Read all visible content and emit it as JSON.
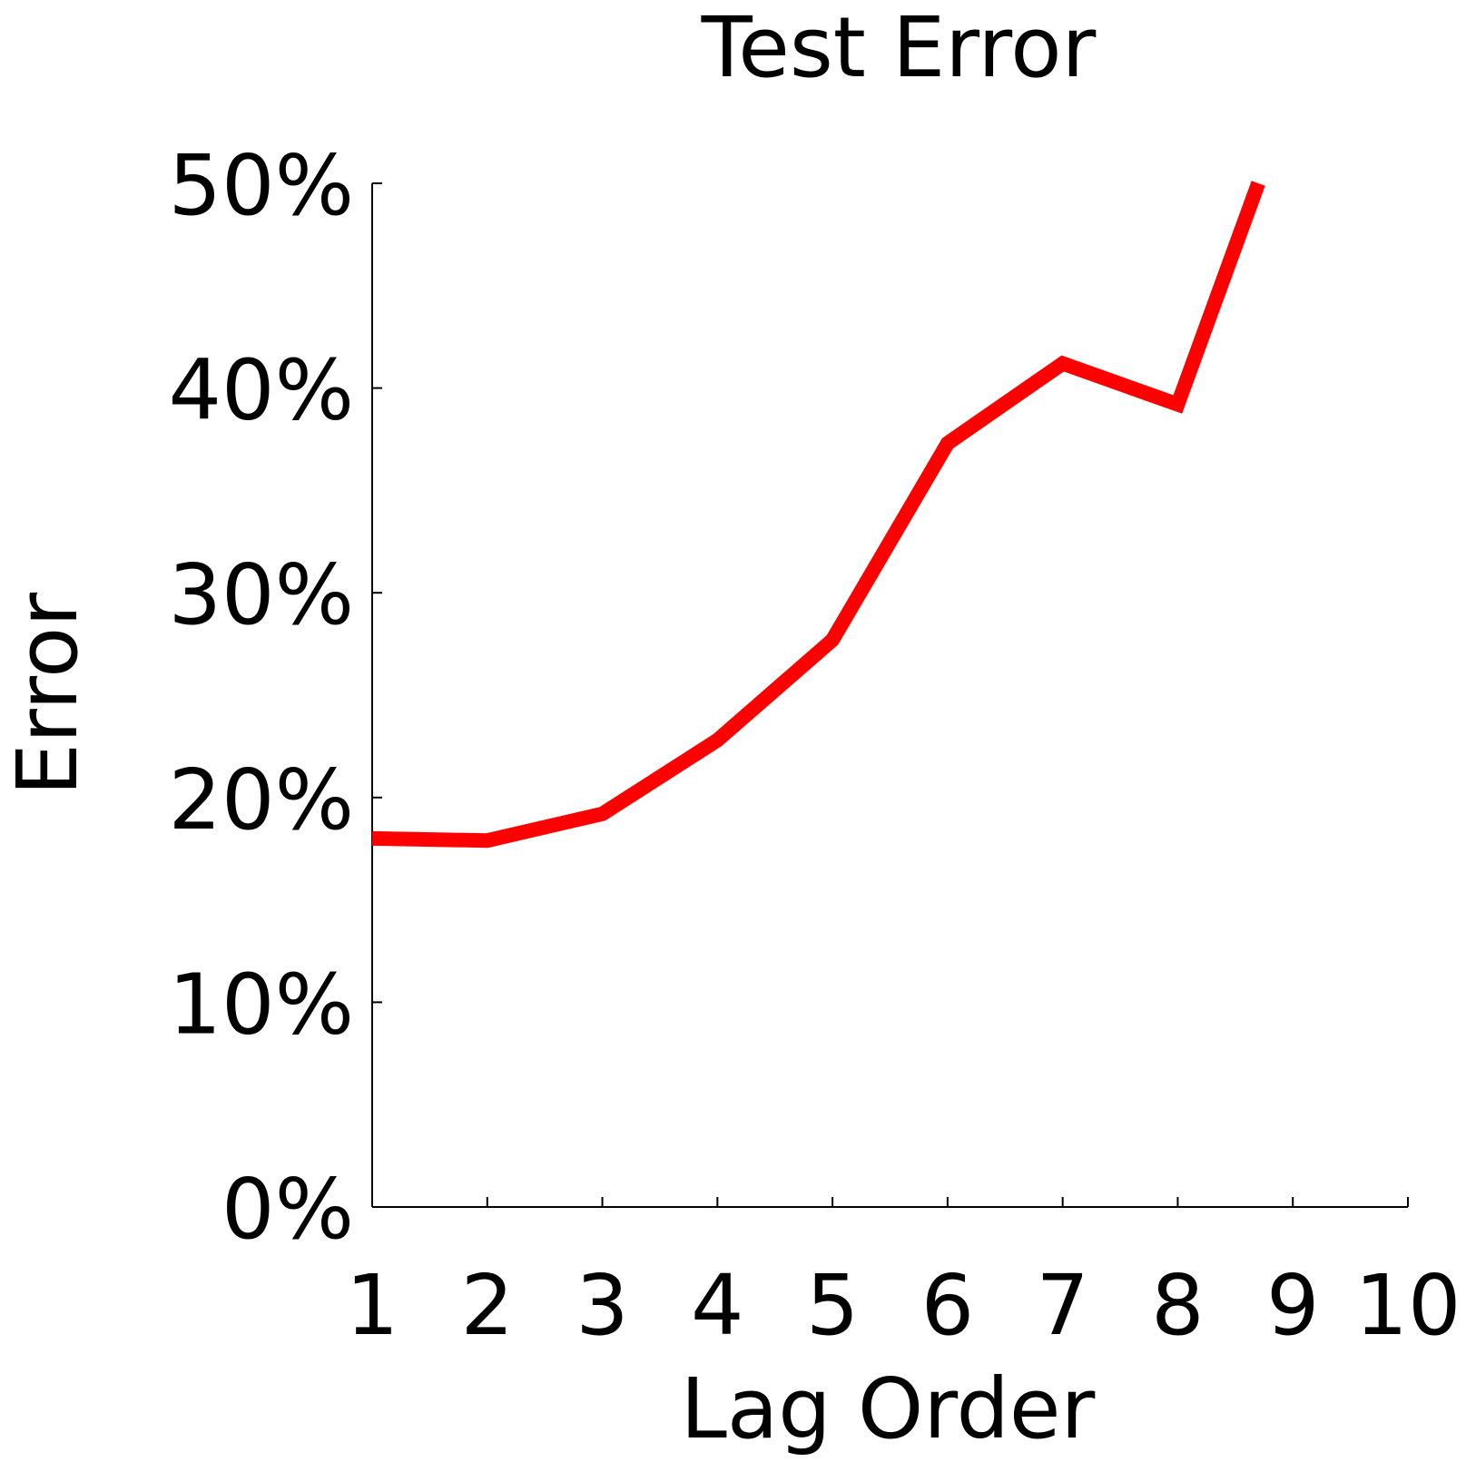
{
  "chart_data": {
    "type": "line",
    "title": "Test Error",
    "xlabel": "Lag Order",
    "ylabel": "Error",
    "x": [
      1,
      2,
      3,
      4,
      5,
      6,
      7,
      8,
      8.7
    ],
    "xlim": [
      1,
      10
    ],
    "ylim": [
      0,
      50
    ],
    "x_ticks": [
      1,
      2,
      3,
      4,
      5,
      6,
      7,
      8,
      9,
      10
    ],
    "x_tick_labels": [
      "1",
      "2",
      "3",
      "4",
      "5",
      "6",
      "7",
      "8",
      "9",
      "10"
    ],
    "y_ticks": [
      0,
      10,
      20,
      30,
      40,
      50
    ],
    "y_tick_labels": [
      "0%",
      "10%",
      "20%",
      "30%",
      "40%",
      "50%"
    ],
    "grid": false,
    "series": [
      {
        "values": [
          18,
          17.9,
          19.2,
          22.8,
          27.7,
          37.3,
          41.2,
          39.2,
          50
        ],
        "color": "#ff0000"
      }
    ]
  }
}
